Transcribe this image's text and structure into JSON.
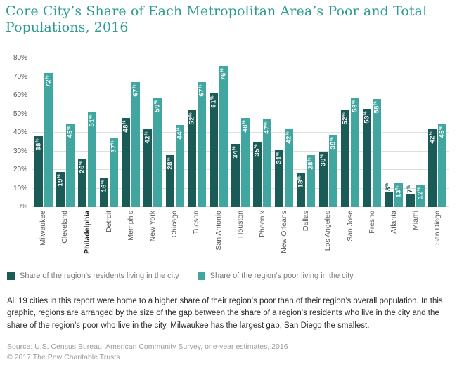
{
  "header": {
    "title": "Core City’s Share of Each Metropolitan Area’s Poor and Total Populations, 2016"
  },
  "chart_data": {
    "type": "bar",
    "title": "Core City’s Share of Each Metropolitan Area’s Poor and Total Populations, 2016",
    "categories": [
      "Milwaukee",
      "Cleveland",
      "Philadelphia",
      "Detroit",
      "Memphis",
      "New York",
      "Chicago",
      "Tucson",
      "San Antonio",
      "Houston",
      "Phoenix",
      "New Orleans",
      "Dallas",
      "Los Angeles",
      "San Jose",
      "Fresno",
      "Atlanta",
      "Miami",
      "San Diego"
    ],
    "series": [
      {
        "name": "Share of the region’s residents living in the city",
        "color": "#1A5A57",
        "values": [
          38,
          19,
          26,
          16,
          48,
          42,
          28,
          52,
          61,
          34,
          35,
          31,
          18,
          30,
          52,
          53,
          8,
          7,
          42
        ]
      },
      {
        "name": "Share of the region’s poor living in the city",
        "color": "#41A6A0",
        "values": [
          72,
          45,
          51,
          37,
          67,
          59,
          44,
          67,
          76,
          48,
          47,
          42,
          28,
          39,
          59,
          58,
          13,
          12,
          45
        ]
      }
    ],
    "value_suffix": "%",
    "ylim": [
      0,
      80
    ],
    "ytick_labels": [
      "0%",
      "10%",
      "20%",
      "30%",
      "40%",
      "50%",
      "60%",
      "70%",
      "80%"
    ],
    "grid": "horizontal",
    "legend_position": "bottom",
    "hatched_category": "Philadelphia",
    "bold_category": "Philadelphia",
    "label_outside_below": 10,
    "outside_label_color": "#1A5A57"
  },
  "notes": {
    "paragraph": "All 19 cities in this report were home to a higher share of their region’s poor than of their region’s overall population. In this graphic, regions are arranged by the size of the gap between the share of a region’s residents who live in the city and the share of the region’s poor who live in the city. Milwaukee has the largest gap, San Diego the smallest."
  },
  "footer": {
    "source": "Source: U.S. Census Bureau, American Community Survey, one-year estimates, 2016",
    "copyright": "© 2017 The Pew Charitable Trusts"
  },
  "colors": {
    "title": "#2E9C93",
    "grid": "#DEDEDE",
    "axis_label": "#58595B",
    "legend_text": "#77787B",
    "source_text": "#9B9B9B"
  }
}
